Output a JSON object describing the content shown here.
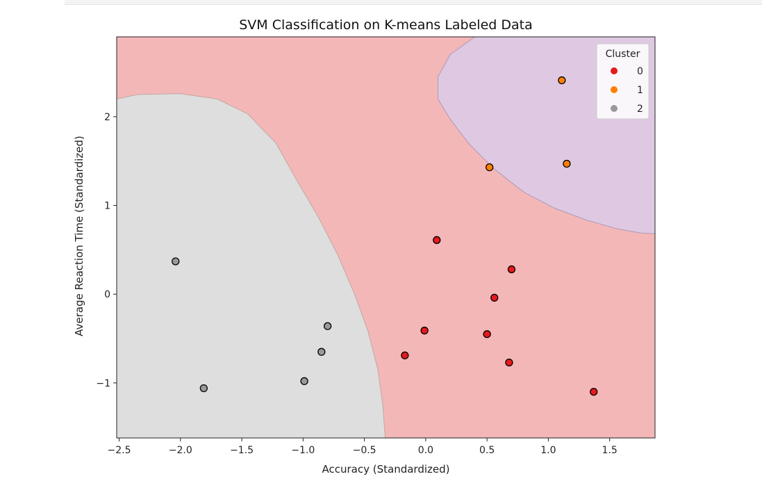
{
  "chart_data": {
    "type": "scatter",
    "title": "SVM Classification on K-means Labeled Data",
    "xlabel": "Accuracy (Standardized)",
    "ylabel": "Average Reaction Time (Standardized)",
    "xlim": [
      -2.52,
      1.87
    ],
    "ylim": [
      -1.62,
      2.9
    ],
    "xticks": [
      -2.5,
      -2.0,
      -1.5,
      -1.0,
      -0.5,
      0.0,
      0.5,
      1.0,
      1.5
    ],
    "xtick_labels": [
      "−2.5",
      "−2.0",
      "−1.5",
      "−1.0",
      "−0.5",
      "0.0",
      "0.5",
      "1.0",
      "1.5"
    ],
    "yticks": [
      -1,
      0,
      1,
      2
    ],
    "ytick_labels": [
      "−1",
      "0",
      "1",
      "2"
    ],
    "grid": false,
    "legend": {
      "title": "Cluster",
      "placement": "top-right",
      "entries": [
        "0",
        "1",
        "2"
      ]
    },
    "series": [
      {
        "name": "0",
        "color": "#e41a1c",
        "region_color": "#f4b7b8",
        "points": [
          [
            0.09,
            0.61
          ],
          [
            0.7,
            0.28
          ],
          [
            0.56,
            -0.04
          ],
          [
            -0.01,
            -0.41
          ],
          [
            0.5,
            -0.45
          ],
          [
            -0.17,
            -0.69
          ],
          [
            0.68,
            -0.77
          ],
          [
            1.37,
            -1.1
          ]
        ]
      },
      {
        "name": "1",
        "color": "#ff7f00",
        "region_color": "#dfc8e2",
        "points": [
          [
            1.11,
            2.41
          ],
          [
            0.52,
            1.43
          ],
          [
            1.15,
            1.47
          ]
        ]
      },
      {
        "name": "2",
        "color": "#999999",
        "region_color": "#dedede",
        "points": [
          [
            -2.04,
            0.37
          ],
          [
            -0.8,
            -0.36
          ],
          [
            -0.85,
            -0.65
          ],
          [
            -0.99,
            -0.98
          ],
          [
            -1.81,
            -1.06
          ]
        ]
      }
    ],
    "decision_regions": {
      "class_0_boundary_with_2": [
        [
          -2.52,
          2.2
        ],
        [
          -2.35,
          2.25
        ],
        [
          -2.0,
          2.26
        ],
        [
          -1.7,
          2.2
        ],
        [
          -1.45,
          2.03
        ],
        [
          -1.22,
          1.7
        ],
        [
          -1.05,
          1.28
        ],
        [
          -0.88,
          0.88
        ],
        [
          -0.72,
          0.45
        ],
        [
          -0.58,
          0.0
        ],
        [
          -0.47,
          -0.42
        ],
        [
          -0.39,
          -0.85
        ],
        [
          -0.35,
          -1.25
        ],
        [
          -0.33,
          -1.62
        ]
      ],
      "class_0_boundary_with_1": [
        [
          0.4,
          2.9
        ],
        [
          0.2,
          2.7
        ],
        [
          0.1,
          2.45
        ],
        [
          0.1,
          2.2
        ],
        [
          0.2,
          1.97
        ],
        [
          0.35,
          1.7
        ],
        [
          0.55,
          1.42
        ],
        [
          0.8,
          1.15
        ],
        [
          1.05,
          0.97
        ],
        [
          1.3,
          0.84
        ],
        [
          1.55,
          0.74
        ],
        [
          1.75,
          0.69
        ],
        [
          1.87,
          0.68
        ]
      ]
    }
  }
}
